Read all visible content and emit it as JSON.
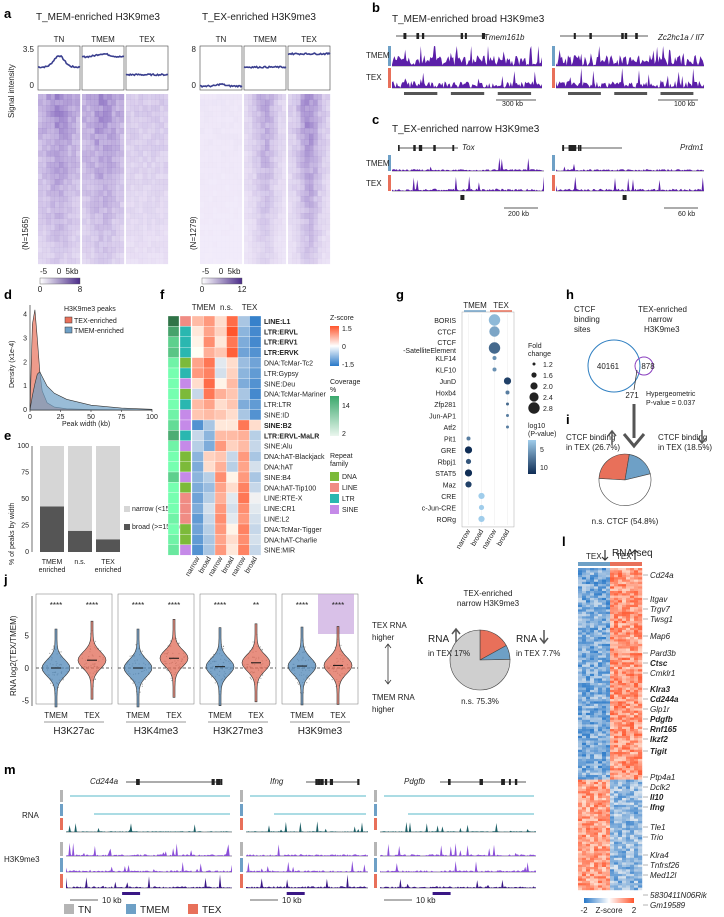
{
  "panels": {
    "a": {
      "label": "a",
      "left_title": "T_MEM-enriched H3K9me3",
      "right_title": "T_EX-enriched H3K9me3",
      "columns": [
        "TN",
        "TMEM",
        "TEX"
      ],
      "ylabel": "Signal intensity",
      "left_ymax": "3.5",
      "left_ymin": "0",
      "right_ymax": "8",
      "right_ymin": "0",
      "left_n": "(N=1565)",
      "right_n": "(N=1279)",
      "xticks": [
        "-5",
        "0",
        "5kb"
      ],
      "left_scale": [
        "0",
        "8"
      ],
      "right_scale": [
        "0",
        "12"
      ],
      "profile_color": "#3a3f8f",
      "heatmap_color": "#7b5cb8"
    },
    "b": {
      "label": "b",
      "title": "T_MEM-enriched broad H3K9me3",
      "genes": [
        "Tmem161b",
        "Zc2hc1a / Il7"
      ],
      "tracks": [
        "TMEM",
        "TEX"
      ],
      "scalebars": [
        "300 kb",
        "100 kb"
      ]
    },
    "c": {
      "label": "c",
      "title": "T_EX-enriched narrow H3K9me3",
      "genes": [
        "Tox",
        "Prdm1"
      ],
      "tracks": [
        "TMEM",
        "TEX"
      ],
      "scalebars": [
        "200 kb",
        "60 kb"
      ]
    },
    "d": {
      "label": "d",
      "ylabel": "Density (x1e-4)",
      "xlabel": "Peak width (kb)",
      "legend_title": "H3K9me3 peaks",
      "legend": [
        "TEX-enriched",
        "TMEM-enriched"
      ],
      "colors": [
        "#e8705a",
        "#6ea0c6"
      ],
      "xticks": [
        "0",
        "25",
        "50",
        "75",
        "100"
      ],
      "yticks": [
        "0",
        "1",
        "2",
        "3",
        "4"
      ]
    },
    "e": {
      "label": "e",
      "ylabel": "% of peaks by width",
      "categories": [
        "TMEM enriched",
        "n.s.",
        "TEX enriched"
      ],
      "legend": [
        "narrow (<15kb)",
        "broad (>=15kb)"
      ],
      "colors": [
        "#d6d6d6",
        "#555555"
      ],
      "yticks": [
        "0",
        "25",
        "50",
        "75",
        "100"
      ]
    },
    "f": {
      "label": "f",
      "col_groups": [
        "TMEM",
        "n.s.",
        "TEX"
      ],
      "col_labels": [
        "narrow",
        "broad",
        "narrow",
        "broad",
        "narrow",
        "broad"
      ],
      "rows": [
        "LINE:L1",
        "LTR:ERVL",
        "LTR:ERV1",
        "LTR:ERVK",
        "DNA:TcMar-Tc2",
        "LTR:Gypsy",
        "SINE:Deu",
        "DNA:TcMar-Mariner",
        "LTR:LTR",
        "SINE:ID",
        "SINE:B2",
        "LTR:ERVL-MaLR",
        "SINE:Alu",
        "DNA:hAT-Blackjack",
        "DNA:hAT",
        "SINE:B4",
        "DNA:hAT-Tip100",
        "LINE:RTE-X",
        "LINE:CR1",
        "LINE:L2",
        "DNA:TcMar-Tigger",
        "DNA:hAT-Charlie",
        "SINE:MIR"
      ],
      "bold_rows": [
        "LINE:L1",
        "LTR:ERVL",
        "LTR:ERV1",
        "LTR:ERVK",
        "SINE:B2",
        "LTR:ERVL-MaLR"
      ],
      "zscore_title": "Z-score",
      "zscore_ticks": [
        "1.5",
        "0",
        "-1.5"
      ],
      "coverage_title": "Coverage %",
      "coverage_ticks": [
        "14",
        "2"
      ],
      "family_title": "Repeat family",
      "families": [
        "DNA",
        "LINE",
        "LTR",
        "SINE"
      ],
      "family_colors": [
        "#7cba3a",
        "#f08c84",
        "#2ab7b0",
        "#c58ae8"
      ]
    },
    "g": {
      "label": "g",
      "col_groups": [
        "TMEM",
        "TEX"
      ],
      "col_labels": [
        "narrow",
        "broad",
        "narrow",
        "broad"
      ],
      "rows": [
        "BORIS",
        "CTCF",
        "CTCF-SatelliteElement",
        "KLF14",
        "KLF10",
        "JunD",
        "Hoxb4",
        "Zfp281",
        "Jun-AP1",
        "Atf2",
        "Pit1",
        "GRE",
        "Rbpj1",
        "STAT5",
        "Maz",
        "CRE",
        "c-Jun-CRE",
        "RORg"
      ],
      "row_display": [
        "BORIS",
        "CTCF",
        "CTCF",
        "-SatelliteElement",
        "KLF14",
        "KLF10",
        "JunD",
        "Hoxb4",
        "Zfp281",
        "Jun-AP1",
        "Atf2",
        "Pit1",
        "GRE",
        "Rbpj1",
        "STAT5",
        "Maz",
        "CRE",
        "c-Jun-CRE",
        "RORg"
      ],
      "fc_title": "Fold change",
      "fc_ticks": [
        "1.2",
        "1.6",
        "2.0",
        "2.4",
        "2.8"
      ],
      "p_title": "log10 (P-value)",
      "p_ticks": [
        "5",
        "10"
      ]
    },
    "h": {
      "label": "h",
      "set_a": "CTCF binding sites",
      "set_b": "TEX-enriched narrow H3K9me3",
      "a_only": "40161",
      "b_only": "878",
      "overlap": "271",
      "test": "Hypergeometric P-value = 0.037"
    },
    "i": {
      "label": "i",
      "up_label": "CTCF binding in TEX (26.7%)",
      "down_label": "CTCF binding in TEX (18.5%)",
      "ns_label": "n.s. CTCF (54.8%)"
    },
    "j": {
      "label": "j",
      "ylabel": "RNA log2(TEX/TMEM)",
      "marks": [
        "H3K27ac",
        "H3K4me3",
        "H3K27me3",
        "H3K9me3"
      ],
      "groups": [
        "TMEM",
        "TEX"
      ],
      "stars": [
        "****",
        "****",
        "****",
        "****",
        "****",
        "**",
        "****",
        "****"
      ],
      "yticks": [
        "5",
        "0",
        "-5"
      ],
      "right_top": "TEX RNA higher",
      "right_bottom": "TMEM RNA higher"
    },
    "k": {
      "label": "k",
      "title": "TEX-enriched narrow H3K9me3",
      "up_label": "RNA in TEX 17%",
      "down_label": "RNA in TEX 7.7%",
      "ns_label": "n.s. 75.3%"
    },
    "l": {
      "label": "l",
      "title": "RNA-seq",
      "col_groups": [
        "TEX",
        "TEX"
      ],
      "genes": [
        "Cd24a",
        "Itgav",
        "Trgv7",
        "Twsg1",
        "Map6",
        "Pard3b",
        "Ctsc",
        "Cmklr1",
        "Klra3",
        "Cd244a",
        "Glp1r",
        "Pdgfb",
        "Rnf165",
        "Ikzf2",
        "Tigit",
        "Ptp4a1",
        "Dclk2",
        "Il10",
        "Ifng",
        "Tle1",
        "Trio",
        "Klra4",
        "Tnfrsf26",
        "Med12l",
        "5830411N06Rik",
        "Gm19589"
      ],
      "bold_genes": [
        "Ctsc",
        "Klra3",
        "Cd244a",
        "Pdgfb",
        "Rnf165",
        "Ikzf2",
        "Tigit",
        "Il10",
        "Ifng"
      ],
      "scale_ticks": [
        "-2",
        "2"
      ],
      "scale_title": "Z-score"
    },
    "m": {
      "label": "m",
      "genes": [
        "Cd244a",
        "Ifng",
        "Pdgfb"
      ],
      "row_labels": [
        "RNA",
        "H3K9me3"
      ],
      "scalebar": "10 kb",
      "legend": [
        "TN",
        "TMEM",
        "TEX"
      ],
      "legend_colors": [
        "#b5b5b5",
        "#6ea0c6",
        "#e8705a"
      ]
    }
  },
  "chart_data": [
    {
      "panel": "d",
      "type": "line",
      "xlabel": "Peak width (kb)",
      "ylabel": "Density (x1e-4)",
      "xlim": [
        0,
        100
      ],
      "ylim": [
        0,
        4.4
      ],
      "series": [
        {
          "name": "TEX-enriched",
          "x": [
            0,
            2,
            4,
            6,
            8,
            10,
            14,
            20,
            30,
            50,
            75,
            100
          ],
          "values": [
            0,
            3.6,
            4.2,
            3.0,
            1.6,
            0.8,
            0.3,
            0.12,
            0.05,
            0.02,
            0.01,
            0.0
          ]
        },
        {
          "name": "TMEM-enriched",
          "x": [
            0,
            2,
            4,
            6,
            8,
            10,
            14,
            20,
            30,
            50,
            75,
            100
          ],
          "values": [
            0,
            0.6,
            1.1,
            1.5,
            1.6,
            1.4,
            1.0,
            0.7,
            0.45,
            0.2,
            0.08,
            0.03
          ]
        }
      ]
    },
    {
      "panel": "e",
      "type": "bar",
      "categories": [
        "TMEM enriched",
        "n.s.",
        "TEX enriched"
      ],
      "ylim": [
        0,
        100
      ],
      "series": [
        {
          "name": "broad (>=15kb)",
          "values": [
            43,
            20,
            12
          ]
        },
        {
          "name": "narrow (<15kb)",
          "values": [
            57,
            80,
            88
          ]
        }
      ]
    },
    {
      "panel": "f",
      "type": "heatmap",
      "columns": [
        "TMEM narrow",
        "TMEM broad",
        "n.s. narrow",
        "n.s. broad",
        "TEX narrow",
        "TEX broad"
      ],
      "values": [
        [
          0.6,
          0.9,
          0.3,
          1.3,
          -0.6,
          -1.4
        ],
        [
          0.2,
          0.8,
          0.4,
          1.5,
          -0.8,
          -1.3
        ],
        [
          0.1,
          1.0,
          0.2,
          1.2,
          -0.9,
          -1.3
        ],
        [
          0.0,
          0.7,
          0.5,
          1.4,
          -1.0,
          -1.2
        ],
        [
          0.8,
          1.2,
          -0.2,
          0.3,
          -0.7,
          -1.0
        ],
        [
          0.9,
          1.1,
          -0.3,
          0.4,
          -0.8,
          -1.1
        ],
        [
          0.3,
          1.3,
          0.1,
          0.6,
          -0.9,
          -1.2
        ],
        [
          -0.4,
          1.2,
          0.7,
          0.5,
          -0.6,
          -1.3
        ],
        [
          0.6,
          0.8,
          0.3,
          0.5,
          -0.9,
          -1.1
        ],
        [
          0.5,
          0.6,
          0.5,
          0.3,
          -0.6,
          -1.2
        ],
        [
          -1.2,
          -0.6,
          0.2,
          0.2,
          1.2,
          0.3
        ],
        [
          -0.4,
          -0.8,
          0.6,
          0.6,
          0.7,
          -0.5
        ],
        [
          -0.5,
          -0.9,
          0.9,
          0.4,
          0.6,
          -0.4
        ],
        [
          -0.8,
          0.4,
          0.5,
          -0.4,
          0.9,
          -0.6
        ],
        [
          -0.9,
          0.3,
          0.7,
          -0.5,
          0.8,
          -0.3
        ],
        [
          -0.8,
          -0.5,
          1.0,
          0.1,
          0.9,
          -0.6
        ],
        [
          -0.9,
          -0.7,
          0.8,
          0.3,
          1.1,
          -0.4
        ],
        [
          -1.0,
          -0.5,
          0.7,
          -0.2,
          1.2,
          -0.1
        ],
        [
          -0.9,
          -0.3,
          0.9,
          -0.3,
          1.0,
          -0.2
        ],
        [
          -1.1,
          -0.4,
          1.0,
          -0.2,
          0.9,
          -0.3
        ],
        [
          -1.0,
          -0.5,
          0.9,
          0.1,
          1.1,
          -0.4
        ],
        [
          -1.1,
          -0.6,
          0.8,
          0.3,
          1.0,
          -0.3
        ],
        [
          -1.2,
          -0.6,
          0.9,
          0.2,
          1.1,
          -0.4
        ]
      ],
      "coverage": [
        14,
        10,
        6,
        7,
        3,
        2,
        2,
        2,
        2,
        3,
        5,
        9,
        3,
        2,
        2,
        6,
        2,
        2,
        2,
        3,
        2,
        3,
        4
      ],
      "family": [
        "LINE",
        "LTR",
        "LTR",
        "LTR",
        "DNA",
        "LTR",
        "SINE",
        "DNA",
        "LTR",
        "SINE",
        "SINE",
        "LTR",
        "SINE",
        "DNA",
        "DNA",
        "SINE",
        "DNA",
        "LINE",
        "LINE",
        "LINE",
        "DNA",
        "DNA",
        "SINE"
      ]
    },
    {
      "panel": "g",
      "type": "scatter",
      "columns": [
        "TMEM narrow",
        "TMEM broad",
        "TEX narrow",
        "TEX broad"
      ],
      "points": [
        {
          "row": "BORIS",
          "col": 2,
          "fc": 2.8,
          "logp": 4
        },
        {
          "row": "CTCF",
          "col": 2,
          "fc": 2.6,
          "logp": 5
        },
        {
          "row": "CTCF-SatelliteElement",
          "col": 2,
          "fc": 2.8,
          "logp": 8
        },
        {
          "row": "KLF14",
          "col": 2,
          "fc": 1.4,
          "logp": 6
        },
        {
          "row": "KLF10",
          "col": 2,
          "fc": 1.4,
          "logp": 6
        },
        {
          "row": "JunD",
          "col": 3,
          "fc": 2.0,
          "logp": 10
        },
        {
          "row": "Hoxb4",
          "col": 3,
          "fc": 1.4,
          "logp": 7
        },
        {
          "row": "Zfp281",
          "col": 3,
          "fc": 1.2,
          "logp": 8
        },
        {
          "row": "Jun-AP1",
          "col": 3,
          "fc": 1.2,
          "logp": 7
        },
        {
          "row": "Atf2",
          "col": 3,
          "fc": 1.2,
          "logp": 7
        },
        {
          "row": "Pit1",
          "col": 0,
          "fc": 1.4,
          "logp": 7
        },
        {
          "row": "GRE",
          "col": 0,
          "fc": 2.0,
          "logp": 11
        },
        {
          "row": "Rbpj1",
          "col": 0,
          "fc": 1.6,
          "logp": 9
        },
        {
          "row": "STAT5",
          "col": 0,
          "fc": 2.0,
          "logp": 11
        },
        {
          "row": "Maz",
          "col": 0,
          "fc": 1.8,
          "logp": 10
        },
        {
          "row": "CRE",
          "col": 1,
          "fc": 1.8,
          "logp": 3
        },
        {
          "row": "c-Jun-CRE",
          "col": 1,
          "fc": 1.6,
          "logp": 3
        },
        {
          "row": "RORg",
          "col": 1,
          "fc": 1.8,
          "logp": 3
        }
      ]
    },
    {
      "panel": "i",
      "type": "pie",
      "categories": [
        "CTCF binding up in TEX",
        "CTCF binding down in TEX",
        "n.s. CTCF"
      ],
      "values": [
        26.7,
        18.5,
        54.8
      ],
      "colors": [
        "#e8705a",
        "#6ea0c6",
        "#ffffff"
      ]
    },
    {
      "panel": "k",
      "type": "pie",
      "categories": [
        "RNA up in TEX",
        "RNA down in TEX",
        "n.s."
      ],
      "values": [
        17,
        7.7,
        75.3
      ],
      "colors": [
        "#e8705a",
        "#6ea0c6",
        "#cfcfcf"
      ]
    }
  ]
}
